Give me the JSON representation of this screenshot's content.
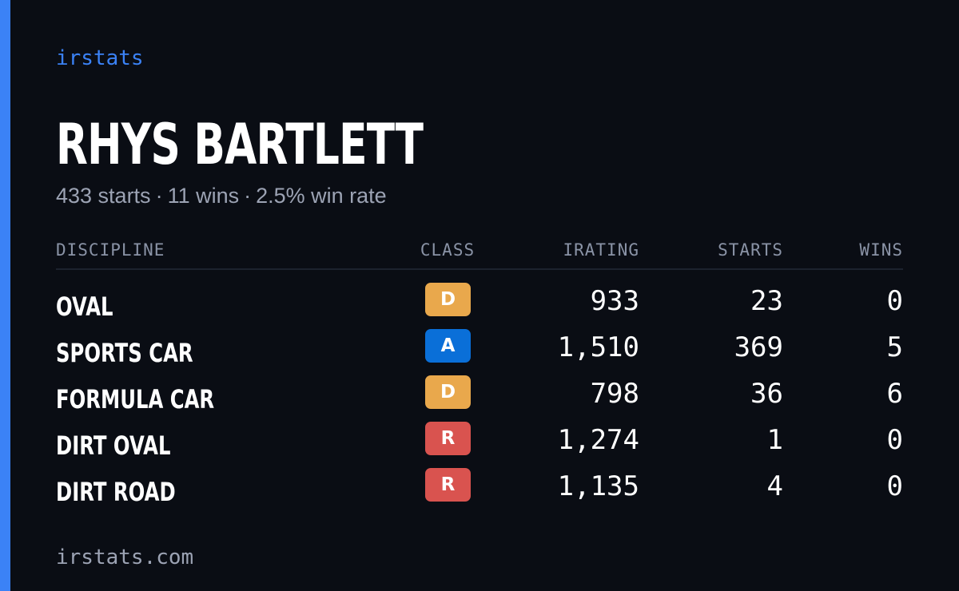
{
  "brand": "irstats",
  "driver": {
    "name": "RHYS BARTLETT",
    "starts": "433 starts",
    "wins": "11 wins",
    "win_rate": "2.5% win rate",
    "separator": "·"
  },
  "table": {
    "headers": {
      "discipline": "DISCIPLINE",
      "class": "CLASS",
      "irating": "IRATING",
      "starts": "STARTS",
      "wins": "WINS"
    },
    "rows": [
      {
        "discipline": "OVAL",
        "class": "D",
        "class_color": "#e9a84c",
        "irating": "933",
        "starts": "23",
        "wins": "0"
      },
      {
        "discipline": "SPORTS CAR",
        "class": "A",
        "class_color": "#0a6fd8",
        "irating": "1,510",
        "starts": "369",
        "wins": "5"
      },
      {
        "discipline": "FORMULA CAR",
        "class": "D",
        "class_color": "#e9a84c",
        "irating": "798",
        "starts": "36",
        "wins": "6"
      },
      {
        "discipline": "DIRT OVAL",
        "class": "R",
        "class_color": "#d9534f",
        "irating": "1,274",
        "starts": "1",
        "wins": "0"
      },
      {
        "discipline": "DIRT ROAD",
        "class": "R",
        "class_color": "#d9534f",
        "irating": "1,135",
        "starts": "4",
        "wins": "0"
      }
    ]
  },
  "footer": {
    "site": "irstats.com"
  },
  "colors": {
    "background": "#0a0d14",
    "accent": "#3b82f6",
    "muted": "#9ca3b4"
  }
}
